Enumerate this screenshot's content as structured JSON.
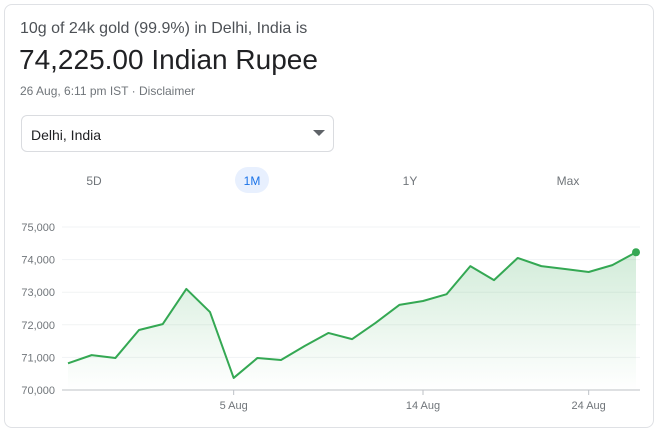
{
  "header": {
    "subtitle": "10g of 24k gold (99.9%) in Delhi, India is",
    "price": "74,225.00 Indian Rupee",
    "timestamp": "26 Aug, 6:11 pm IST",
    "separator": "·",
    "disclaimer": "Disclaimer"
  },
  "location": "Delhi, India",
  "tabs": [
    "5D",
    "1M",
    "1Y",
    "Max"
  ],
  "selected_tab": 1,
  "chart_data": {
    "type": "line",
    "categories": [
      null,
      null,
      null,
      null,
      null,
      null,
      null,
      "5 Aug",
      null,
      null,
      null,
      null,
      null,
      null,
      null,
      "14 Aug",
      null,
      null,
      null,
      null,
      null,
      null,
      "24 Aug",
      null,
      null
    ],
    "series": [
      {
        "color": "#34a853",
        "values": [
          70820,
          71070,
          70980,
          71840,
          72020,
          73100,
          72390,
          70370,
          70980,
          70920,
          71350,
          71750,
          71560,
          72060,
          72610,
          72730,
          72940,
          73800,
          73370,
          74050,
          73800,
          73710,
          73620,
          73830,
          74225
        ]
      }
    ],
    "ylim": [
      70000,
      75000
    ],
    "yticks": [
      {
        "value": 70000,
        "label": "70,000"
      },
      {
        "value": 71000,
        "label": "71,000"
      },
      {
        "value": 72000,
        "label": "72,000"
      },
      {
        "value": 73000,
        "label": "73,000"
      },
      {
        "value": 74000,
        "label": "74,000"
      },
      {
        "value": 75000,
        "label": "75,000"
      }
    ],
    "grid": true
  }
}
